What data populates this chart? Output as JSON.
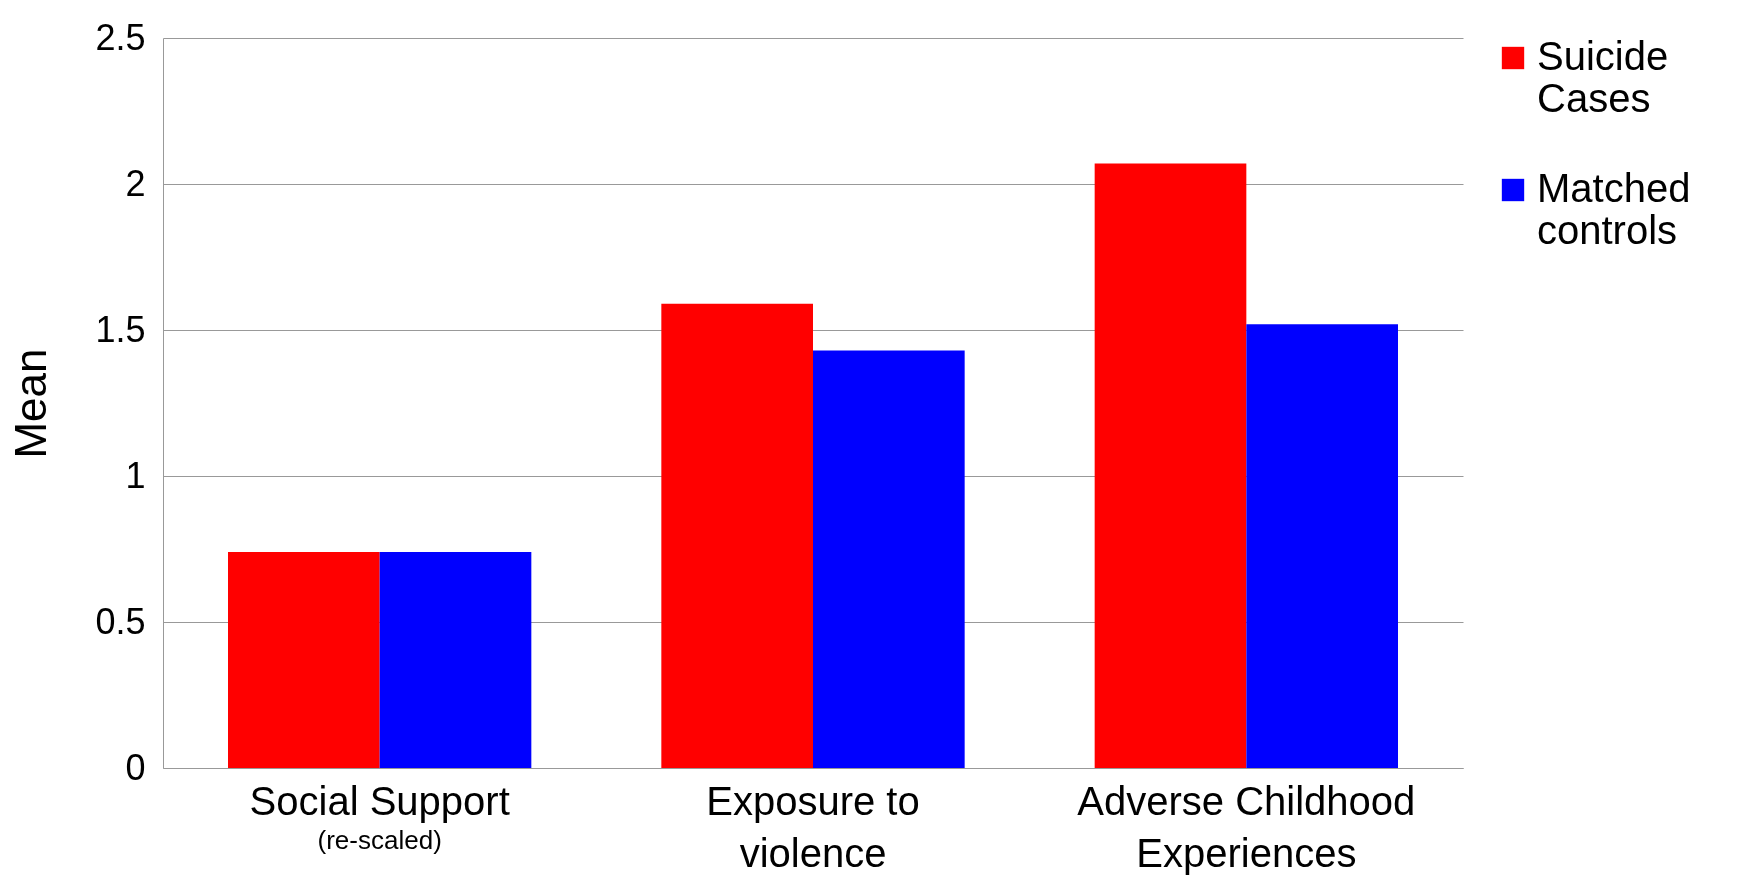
{
  "chart_data": {
    "type": "bar",
    "ylabel": "Mean",
    "categories": [
      "Social Support",
      "Exposure to violence",
      "Adverse Childhood Experiences"
    ],
    "series": [
      {
        "name": "Suicide Cases",
        "color": "#ff0000",
        "values": [
          0.74,
          1.59,
          2.07
        ]
      },
      {
        "name": "Matched controls",
        "color": "#0000ff",
        "values": [
          0.74,
          1.43,
          1.52
        ]
      }
    ],
    "ylim": [
      0,
      2.5
    ],
    "yticks": [
      0,
      0.5,
      1,
      1.5,
      2,
      2.5
    ],
    "grid": "y",
    "legend": "right",
    "annotations": [
      "(re-scaled)"
    ]
  }
}
